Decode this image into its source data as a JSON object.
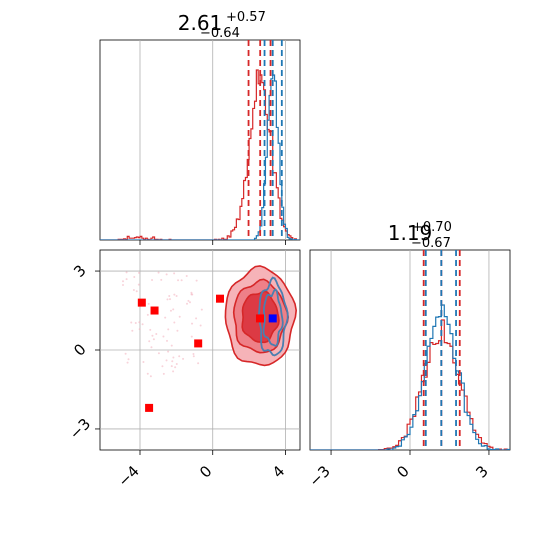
{
  "chart_data": {
    "type": "corner",
    "grid": true,
    "colors": {
      "red": "#d62728",
      "blue": "#1f77b4",
      "marker_red": "#ff0000",
      "marker_blue": "#0000ff",
      "grid": "#b0b0b0"
    },
    "panels": {
      "marginal_x": {
        "title": {
          "value": "2.61",
          "plus": "+0.57",
          "minus": "−0.64"
        },
        "xlim": [
          -6.2,
          4.8
        ],
        "quantile_lines": {
          "red": [
            1.97,
            2.61,
            3.18
          ],
          "blue": [
            2.85,
            3.3,
            3.8
          ]
        }
      },
      "joint": {
        "xlim": [
          -6.2,
          4.8
        ],
        "ylim": [
          -3.8,
          3.8
        ],
        "xticks": [
          -4,
          0,
          4
        ],
        "xtick_labels": [
          "−4",
          "0",
          "4"
        ],
        "yticks": [
          -3,
          0,
          3
        ],
        "ytick_labels": [
          "−3",
          "0",
          "3"
        ],
        "red_markers": [
          [
            -3.9,
            1.8
          ],
          [
            -3.2,
            1.5
          ],
          [
            -0.8,
            0.25
          ],
          [
            0.4,
            1.95
          ],
          [
            2.6,
            1.2
          ],
          [
            -3.5,
            -2.2
          ]
        ],
        "blue_markers": [
          [
            3.3,
            1.2
          ]
        ]
      },
      "marginal_y": {
        "title": {
          "value": "1.19",
          "plus": "+0.70",
          "minus": "−0.67"
        },
        "xlim": [
          -3.8,
          3.8
        ],
        "xticks": [
          -3,
          0,
          3
        ],
        "xtick_labels": [
          "−3",
          "0",
          "3"
        ],
        "quantile_lines": {
          "red": [
            0.52,
            1.19,
            1.89
          ],
          "blue": [
            0.6,
            1.19,
            1.75
          ]
        }
      }
    }
  }
}
